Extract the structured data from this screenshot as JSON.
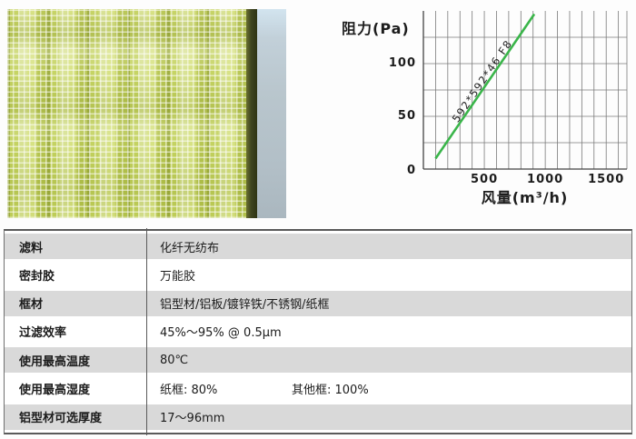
{
  "photo": {
    "alt": "pleated-synthetic-filter-media-photo",
    "colors": {
      "media_green": "#c8d964",
      "mesh_white": "#ffffff",
      "edge_olive": "#3f4520",
      "wall_blue_gray": "#b9c6cd"
    }
  },
  "chart_data": {
    "type": "line",
    "title": "",
    "ylabel": "阻力(Pa)",
    "xlabel": "风量(m³/h)",
    "xlim": [
      0,
      1670
    ],
    "ylim": [
      0,
      150
    ],
    "x_ticks": [
      500,
      1000,
      1500
    ],
    "y_ticks": [
      50,
      100
    ],
    "origin_label": "0",
    "x_grid_step": 100,
    "y_grid_step": 25,
    "grid": true,
    "legend_position": "on-line",
    "grid_color": "#7a7a7a",
    "axis_color": "#444444",
    "line_color": "#3ab54a",
    "series": [
      {
        "name": "592*592*46 F8",
        "points": [
          [
            100,
            10
          ],
          [
            910,
            147
          ]
        ]
      }
    ]
  },
  "table": {
    "rows": [
      {
        "label": "滤料",
        "value": "化纤无纺布"
      },
      {
        "label": "密封胶",
        "value": "万能胶"
      },
      {
        "label": "框材",
        "value": "铝型材/铝板/镀锌铁/不锈钢/纸框"
      },
      {
        "label": "过滤效率",
        "value": "45%～95% @ 0.5μm"
      },
      {
        "label": "使用最高温度",
        "value": "80℃"
      },
      {
        "label": "使用最高湿度",
        "value": "纸框: 80%",
        "value2": "其他框: 100%"
      },
      {
        "label": "铝型材可选厚度",
        "value": "17～96mm"
      }
    ],
    "stripe_color": "#d9d9d9"
  }
}
